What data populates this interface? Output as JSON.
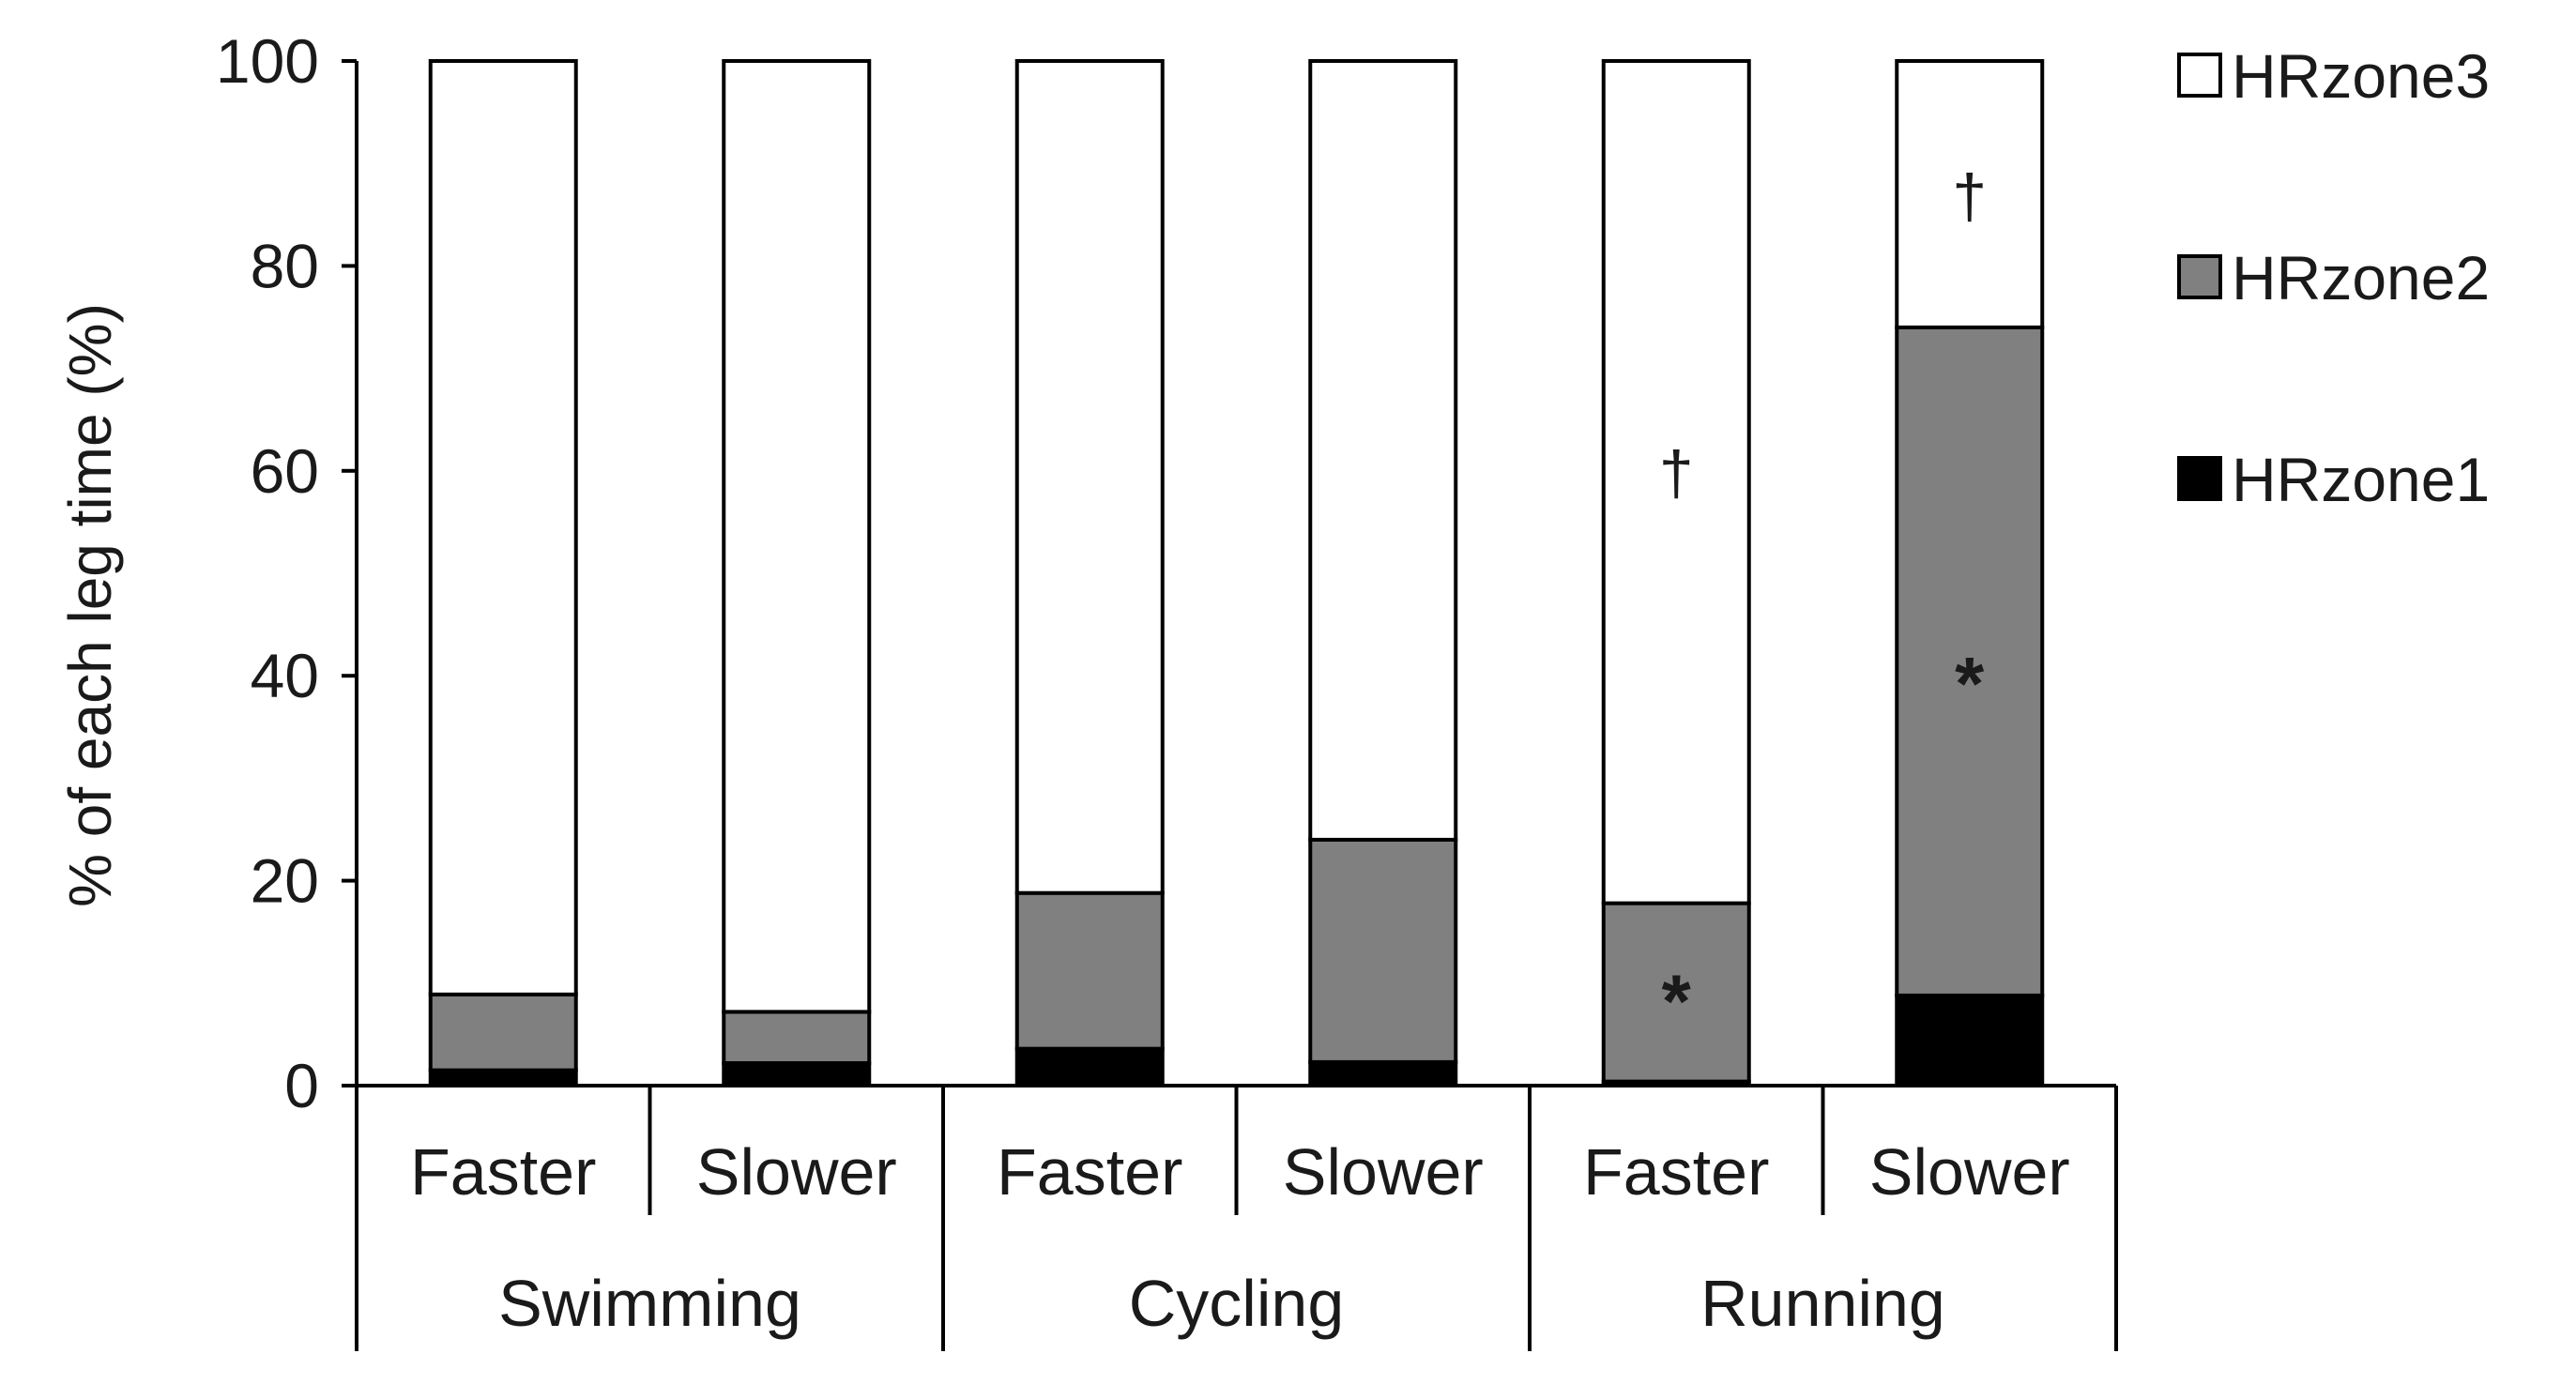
{
  "chart_data": {
    "type": "stacked-bar",
    "ylabel": "% of each leg time (%)",
    "ylim": [
      0,
      100
    ],
    "yticks": [
      0,
      20,
      40,
      60,
      80,
      100
    ],
    "groups": [
      {
        "name": "Swimming",
        "categories": [
          "Faster",
          "Slower"
        ]
      },
      {
        "name": "Cycling",
        "categories": [
          "Faster",
          "Slower"
        ]
      },
      {
        "name": "Running",
        "categories": [
          "Faster",
          "Slower"
        ]
      }
    ],
    "categories": [
      "Faster",
      "Slower",
      "Faster",
      "Slower",
      "Faster",
      "Slower"
    ],
    "series": [
      {
        "name": "HRzone1",
        "color": "#000000",
        "values": [
          1.5,
          2.2,
          3.6,
          2.3,
          0.4,
          8.8
        ]
      },
      {
        "name": "HRzone2",
        "color": "#808080",
        "values": [
          7.4,
          5.0,
          15.2,
          21.7,
          17.4,
          65.2
        ]
      },
      {
        "name": "HRzone3",
        "color": "#ffffff",
        "values": [
          91.1,
          92.8,
          81.2,
          76.0,
          82.2,
          26.0
        ]
      }
    ],
    "annotations": [
      {
        "bar": 4,
        "series": "HRzone2",
        "symbol": "*"
      },
      {
        "bar": 4,
        "series": "HRzone3",
        "symbol": "†"
      },
      {
        "bar": 5,
        "series": "HRzone2",
        "symbol": "*"
      },
      {
        "bar": 5,
        "series": "HRzone3",
        "symbol": "†"
      }
    ],
    "legend": {
      "position": "right",
      "order": [
        "HRzone3",
        "HRzone2",
        "HRzone1"
      ]
    }
  }
}
